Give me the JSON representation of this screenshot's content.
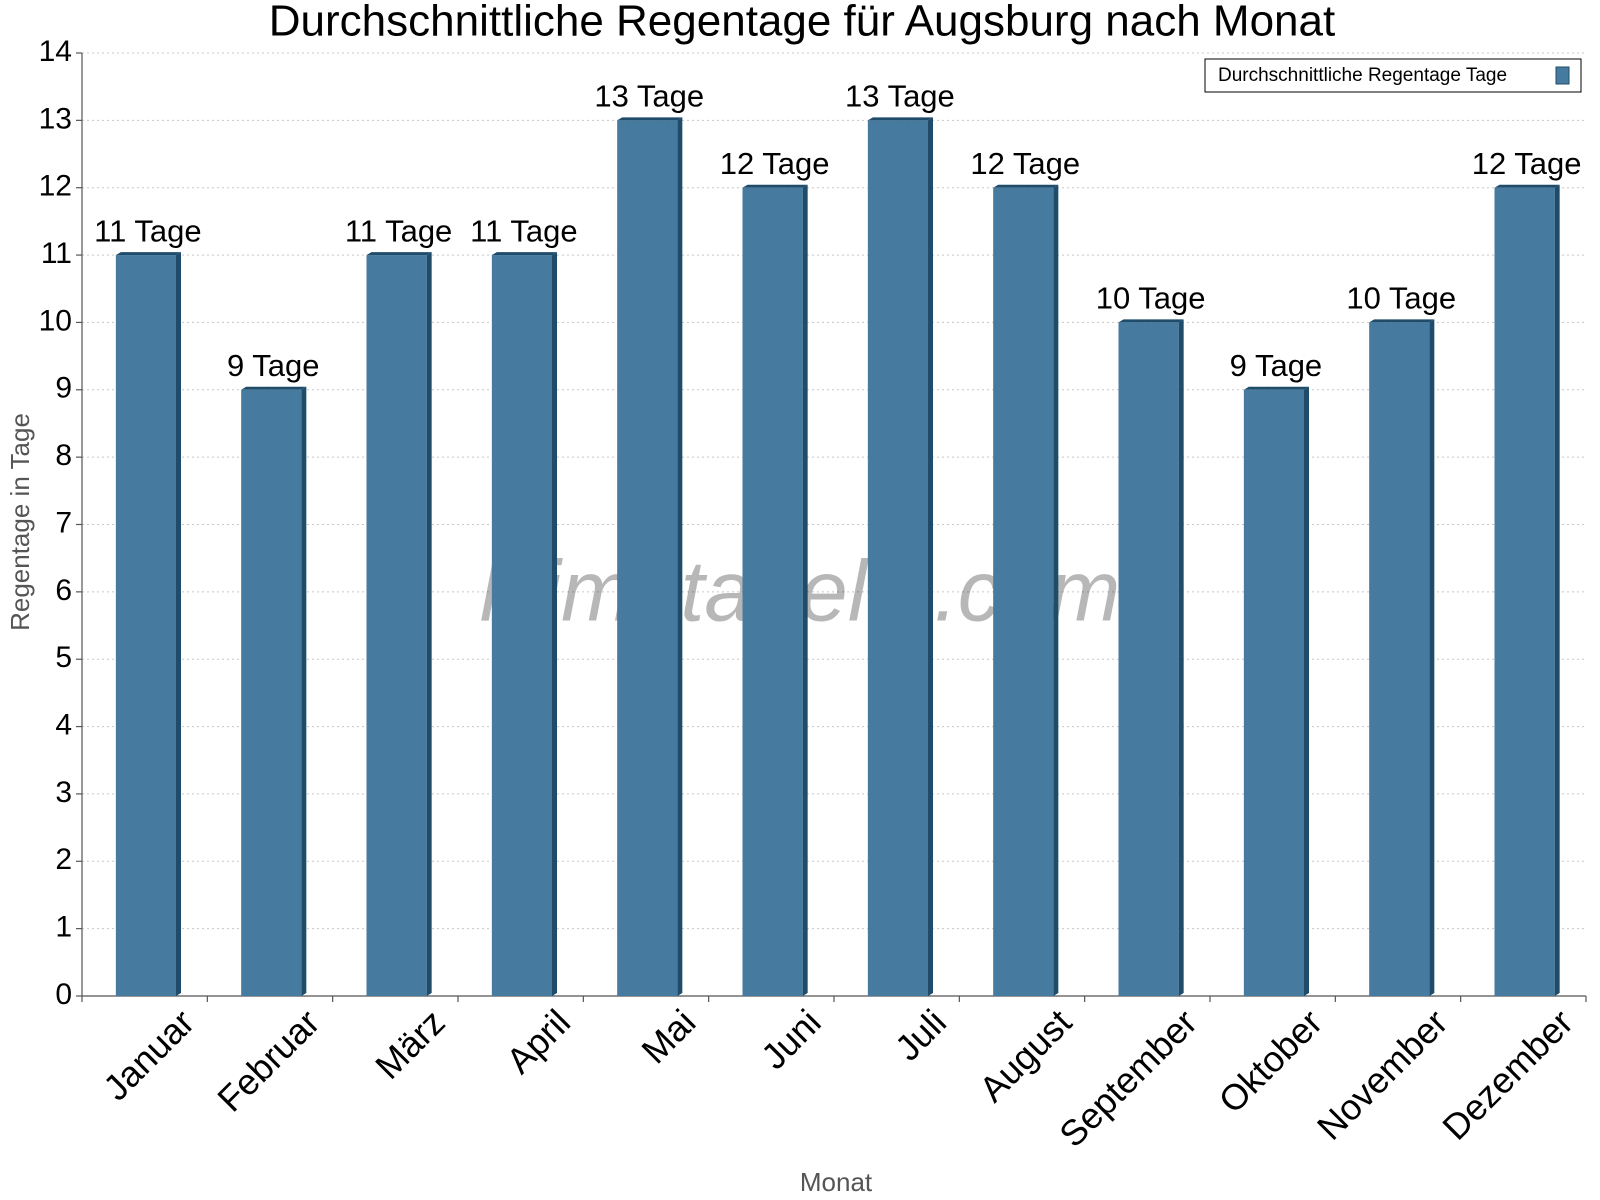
{
  "chart_data": {
    "type": "bar",
    "title": "Durchschnittliche Regentage für Augsburg nach Monat",
    "x_label": "Monat",
    "y_label": "Regentage in Tage",
    "watermark": "klimatabelle.com",
    "categories": [
      "Januar",
      "Februar",
      "März",
      "April",
      "Mai",
      "Juni",
      "Juli",
      "August",
      "September",
      "Oktober",
      "November",
      "Dezember"
    ],
    "series": [
      {
        "name": "Durchschnittliche Regentage Tage",
        "color": "#467a9e",
        "values": [
          11,
          9,
          11,
          11,
          13,
          12,
          13,
          12,
          10,
          9,
          10,
          12
        ],
        "value_labels": [
          "11 Tage",
          "9 Tage",
          "11 Tage",
          "11 Tage",
          "13 Tage",
          "12 Tage",
          "13 Tage",
          "12 Tage",
          "10 Tage",
          "9 Tage",
          "10 Tage",
          "12 Tage"
        ]
      }
    ],
    "ylim": [
      0,
      14
    ],
    "yticks": [
      0,
      1,
      2,
      3,
      4,
      5,
      6,
      7,
      8,
      9,
      10,
      11,
      12,
      13,
      14
    ],
    "grid": true,
    "legend": "top-right"
  }
}
